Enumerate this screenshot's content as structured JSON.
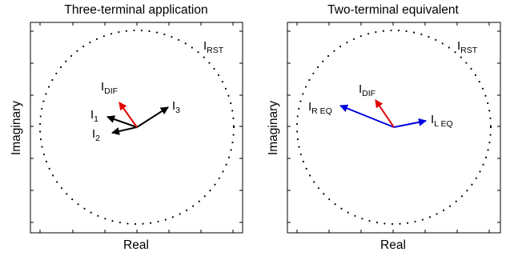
{
  "panels": [
    {
      "title": "Three-terminal application",
      "xlabel": "Real",
      "ylabel": "Imaginary",
      "circle_label": {
        "main": "I",
        "sub": "RST"
      },
      "phasors": [
        {
          "id": "idif",
          "main": "I",
          "sub": "DIF",
          "color": "#e00000"
        },
        {
          "id": "i1",
          "main": "I",
          "sub": "1",
          "color": "#000000"
        },
        {
          "id": "i2",
          "main": "I",
          "sub": "2",
          "color": "#000000"
        },
        {
          "id": "i3",
          "main": "I",
          "sub": "3",
          "color": "#000000"
        }
      ]
    },
    {
      "title": "Two-terminal equivalent",
      "xlabel": "Real",
      "ylabel": "Imaginary",
      "circle_label": {
        "main": "I",
        "sub": "RST"
      },
      "phasors": [
        {
          "id": "idif",
          "main": "I",
          "sub": "DIF",
          "color": "#e00000"
        },
        {
          "id": "ireq",
          "main": "I",
          "sub": "R EQ",
          "color": "#0000e0"
        },
        {
          "id": "ileq",
          "main": "I",
          "sub": "L EQ",
          "color": "#0000e0"
        }
      ]
    }
  ]
}
